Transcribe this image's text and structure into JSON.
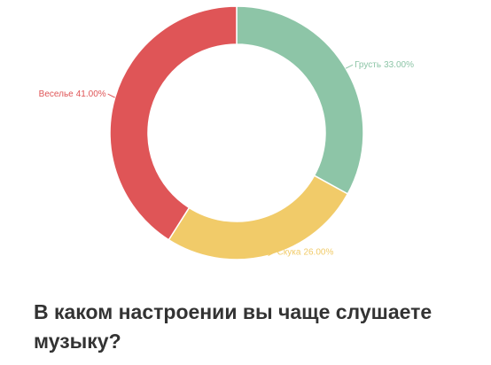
{
  "chart_data": {
    "type": "donut",
    "categories": [
      "Грусть",
      "Скука",
      "Веселье"
    ],
    "values": [
      33,
      26,
      41
    ],
    "value_labels": [
      "33.00%",
      "26.00%",
      "41.00%"
    ],
    "colors": [
      "#8dc5a7",
      "#f1cb69",
      "#df5557"
    ]
  },
  "question": "В каком настроении вы чаще слушаете музыку?"
}
